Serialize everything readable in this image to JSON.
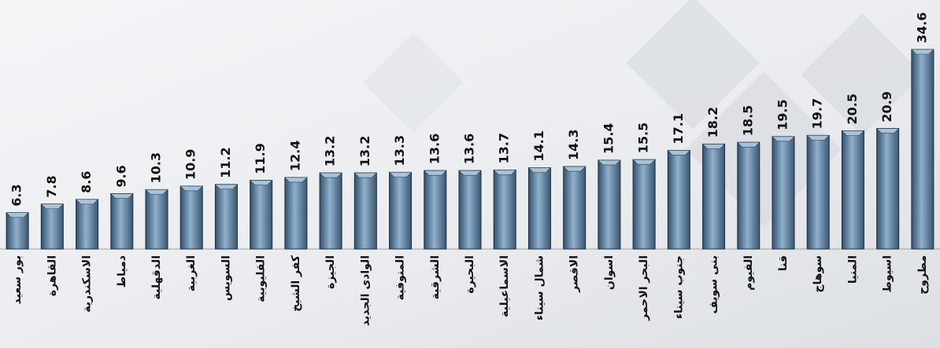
{
  "chart_data": {
    "type": "bar",
    "categories": [
      "بور سعيد",
      "القاهرة",
      "الاسكندرية",
      "دمياط",
      "الدقهلية",
      "الغربية",
      "السويس",
      "القليوبية",
      "كفر الشيخ",
      "الجيزة",
      "الوادى الجديد",
      "المنوفية",
      "الشرقية",
      "البحيرة",
      "الاسماعيلية",
      "شمال سيناء",
      "الاقصر",
      "اسوان",
      "البحر الاحمر",
      "جنوب سيناء",
      "بنى سويف",
      "الفيوم",
      "قنا",
      "سوهاج",
      "المنيا",
      "اسيوط",
      "مطروح"
    ],
    "values": [
      6.3,
      7.8,
      8.6,
      9.6,
      10.3,
      10.9,
      11.2,
      11.9,
      12.4,
      13.2,
      13.2,
      13.3,
      13.6,
      13.6,
      13.7,
      14.1,
      14.3,
      15.4,
      15.5,
      17.1,
      18.2,
      18.5,
      19.5,
      19.7,
      20.5,
      20.9,
      34.6
    ],
    "color": "#5f7f9e"
  }
}
